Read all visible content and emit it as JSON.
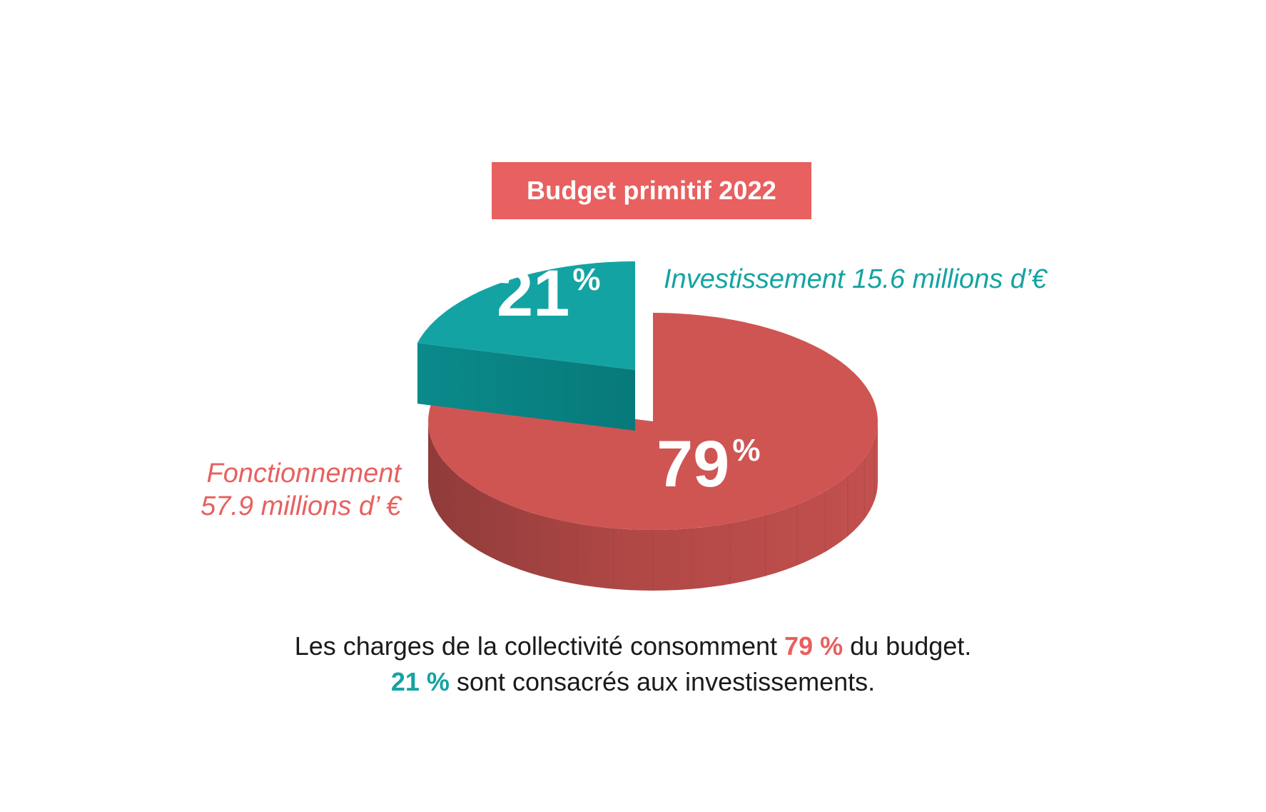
{
  "chart_data": {
    "type": "pie",
    "title": "Budget primitif 2022",
    "slices": [
      {
        "name": "Investissement 15.6 millions d’€",
        "value": 21,
        "value_label": "21",
        "unit": "%",
        "color": "#14a3a3",
        "side_color": "#08898a",
        "exploded": true
      },
      {
        "name_lines": [
          "Fonctionnement",
          "57.9 millions d’ €"
        ],
        "value": 79,
        "value_label": "79",
        "unit": "%",
        "color": "#cf5553",
        "side_color": "#a84442"
      }
    ]
  },
  "caption": {
    "line1_before": "Les charges de la collectivité consomment ",
    "line1_highlight": "79 %",
    "line1_after": " du budget.",
    "line2_highlight": "21 %",
    "line2_after": " sont consacrés aux investissements."
  }
}
